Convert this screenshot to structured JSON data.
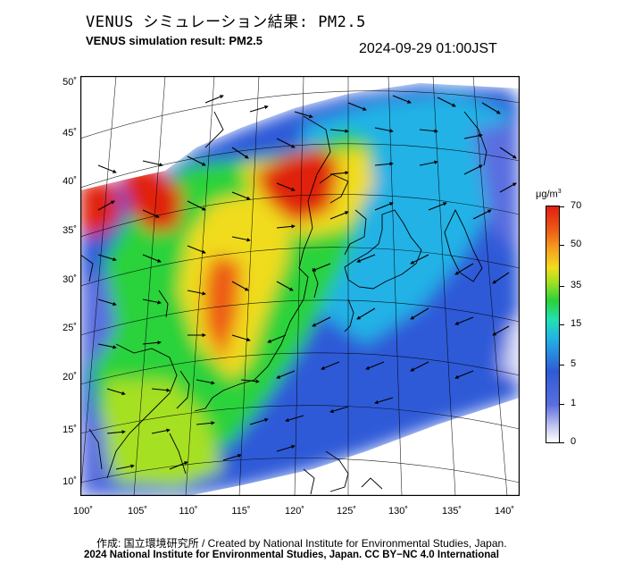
{
  "header": {
    "title_ja": "VENUS シミュレーション結果: PM2.5",
    "title_en": "VENUS simulation result: PM2.5",
    "timestamp": "2024-09-29 01:00JST"
  },
  "axes": {
    "lat_labels": [
      "50˚",
      "45˚",
      "40˚",
      "35˚",
      "30˚",
      "25˚",
      "20˚",
      "15˚",
      "10˚"
    ],
    "lon_labels": [
      "100˚",
      "105˚",
      "110˚",
      "115˚",
      "120˚",
      "125˚",
      "130˚",
      "135˚",
      "140˚"
    ]
  },
  "colorbar": {
    "unit": "μg/m",
    "unit_sup": "3",
    "ticks": [
      "70",
      "50",
      "35",
      "15",
      "5",
      "1",
      "0"
    ]
  },
  "footer": {
    "credit_line1": "作成: 国立環境研究所 / Created by National Institute for Environmental Studies, Japan.",
    "credit_line2": "2024 National Institute for Environmental Studies, Japan. CC BY−NC 4.0 International"
  },
  "colors": {
    "high": "#e02010",
    "mid_high": "#f0dc1e",
    "mid": "#2ad23a",
    "low_mid": "#22b2e6",
    "low": "#2f5ad8",
    "very_low": "#c9cdf2"
  }
}
